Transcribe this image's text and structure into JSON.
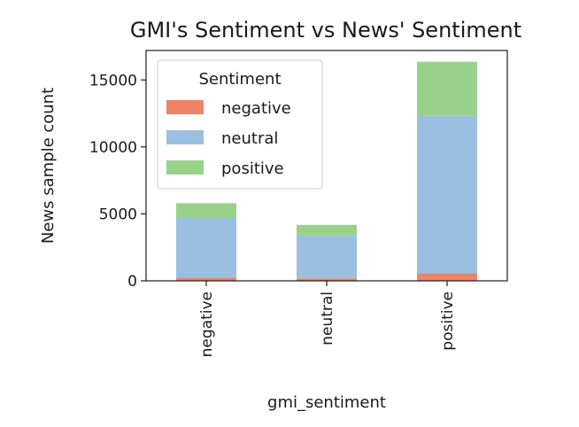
{
  "chart_data": {
    "type": "bar",
    "stacked": true,
    "title": "GMI's Sentiment vs News' Sentiment",
    "xlabel": "gmi_sentiment",
    "ylabel": "News sample count",
    "categories": [
      "negative",
      "neutral",
      "positive"
    ],
    "series": [
      {
        "name": "negative",
        "color": "#ee8466",
        "values": [
          200,
          180,
          560
        ]
      },
      {
        "name": "neutral",
        "color": "#9abfe0",
        "values": [
          4500,
          3200,
          11800
        ]
      },
      {
        "name": "positive",
        "color": "#98d28a",
        "values": [
          1100,
          800,
          4000
        ]
      }
    ],
    "ylim": [
      0,
      17200
    ],
    "yticks": [
      0,
      5000,
      10000,
      15000
    ],
    "grid": false,
    "legend": {
      "title": "Sentiment",
      "placement": "top-left"
    }
  }
}
